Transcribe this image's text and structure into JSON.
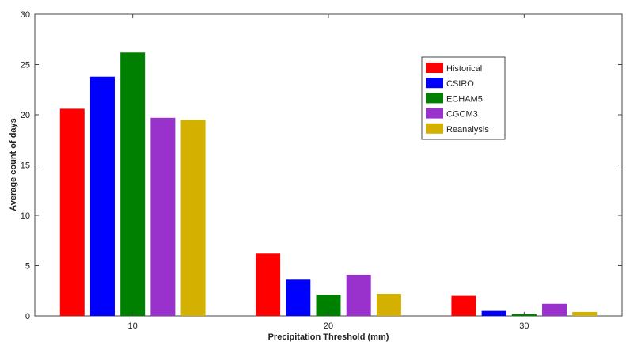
{
  "chart_data": {
    "type": "bar",
    "xlabel": "Precipitation Threshold (mm)",
    "ylabel": "Average count of days",
    "categories": [
      "10",
      "20",
      "30"
    ],
    "ylim": [
      0,
      30
    ],
    "yticks": [
      0,
      5,
      10,
      15,
      20,
      25,
      30
    ],
    "grid": false,
    "legend_position": "top-right",
    "series": [
      {
        "name": "Historical",
        "color": "#ff0000",
        "values": [
          20.6,
          6.2,
          2.0
        ]
      },
      {
        "name": "CSIRO",
        "color": "#0000ff",
        "values": [
          23.8,
          3.6,
          0.5
        ]
      },
      {
        "name": "ECHAM5",
        "color": "#008000",
        "values": [
          26.2,
          2.1,
          0.2
        ]
      },
      {
        "name": "CGCM3",
        "color": "#9932cc",
        "values": [
          19.7,
          4.1,
          1.2
        ]
      },
      {
        "name": "Reanalysis",
        "color": "#d4b000",
        "values": [
          19.5,
          2.2,
          0.4
        ]
      }
    ]
  }
}
